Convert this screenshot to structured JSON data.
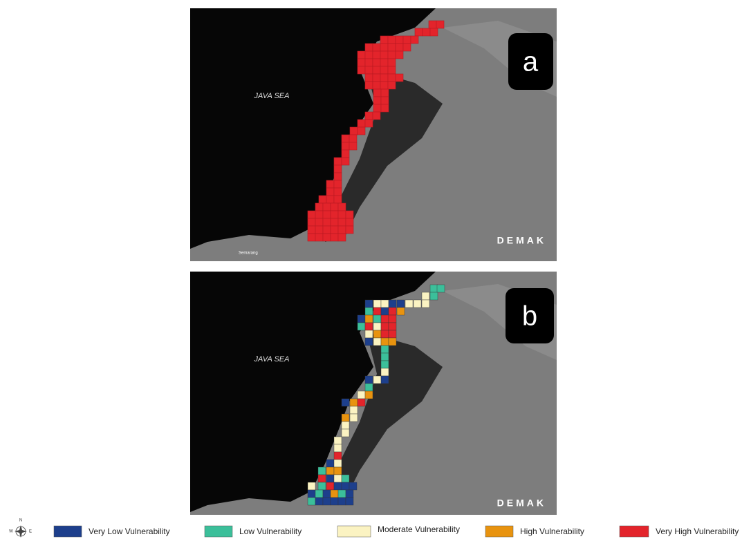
{
  "panels": [
    {
      "label": "a",
      "sea": "JAVA SEA",
      "town": "DEMAK",
      "city": "Semarang"
    },
    {
      "label": "b",
      "sea": "JAVA SEA",
      "town": "DEMAK"
    }
  ],
  "compass": {
    "n": "N",
    "w": "W",
    "e": "E"
  },
  "legend": [
    {
      "label": "Very Low Vulnerability",
      "color": "#1d3f8c"
    },
    {
      "label": "Low Vulnerability",
      "color": "#3bbf9a"
    },
    {
      "label": "Moderate Vulnerability",
      "color": "#fbf3c2"
    },
    {
      "label": "High Vulnerability",
      "color": "#e8930f"
    },
    {
      "label": "Very High Vulnerability",
      "color": "#e3242b"
    }
  ]
}
